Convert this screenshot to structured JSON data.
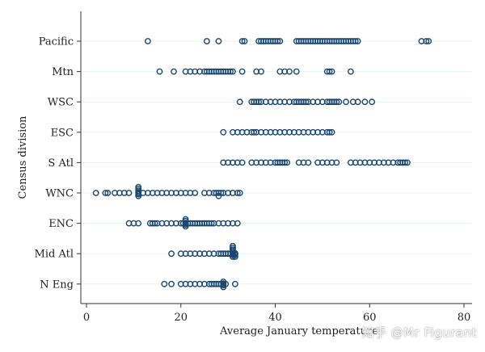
{
  "chart_data": {
    "type": "scatter",
    "xlabel": "Average January temperature",
    "ylabel": "Census division",
    "xlim": [
      0,
      80
    ],
    "x_ticks": [
      0,
      20,
      40,
      60,
      80
    ],
    "categories": [
      "Pacific",
      "Mtn",
      "WSC",
      "ESC",
      "S Atl",
      "WNC",
      "ENC",
      "Mid Atl",
      "N Eng"
    ],
    "grid": "horizontal",
    "legend": "none",
    "marker": "hollow circle",
    "marker_color": "#1a476f",
    "series": [
      {
        "values": [
          13,
          25.5,
          28,
          33,
          33.5,
          36.5,
          37,
          37.5,
          38,
          38.5,
          39,
          39.5,
          40,
          40.5,
          41,
          44.5,
          45,
          45.5,
          46,
          46.5,
          47,
          47.5,
          48,
          48.5,
          49,
          49.5,
          50,
          50.5,
          51,
          51.5,
          52,
          52.5,
          53,
          53.5,
          54,
          54.5,
          55,
          55.5,
          56,
          56.5,
          57,
          57.5,
          71,
          72,
          72.5
        ]
      },
      {
        "values": [
          15.5,
          18.5,
          21,
          22,
          23,
          24,
          25,
          25.5,
          26,
          26.5,
          27,
          27.5,
          28,
          28.5,
          29,
          29.5,
          30,
          30.5,
          31,
          33,
          36,
          37,
          41,
          42,
          43,
          44.5,
          51,
          51.5,
          52,
          56
        ]
      },
      {
        "values": [
          32.5,
          35,
          35.5,
          36,
          36.5,
          37,
          38,
          39,
          40,
          41,
          42,
          43,
          44,
          44.5,
          45,
          45.5,
          46,
          46.5,
          47,
          48,
          49,
          50,
          51,
          51.5,
          52,
          52.5,
          53,
          53.5,
          55,
          56.5,
          57.5,
          59,
          60.5
        ]
      },
      {
        "values": [
          29,
          31,
          32,
          33,
          34,
          35,
          35.5,
          36,
          37,
          38,
          39,
          40,
          41,
          42,
          43,
          44,
          45,
          46,
          47,
          48,
          49,
          50,
          51,
          51.5,
          52
        ]
      },
      {
        "values": [
          29,
          30,
          31,
          32,
          33,
          35,
          36,
          37,
          38,
          39,
          40,
          40.5,
          41,
          41.5,
          42,
          42.5,
          45,
          46,
          47,
          49,
          50,
          51,
          52,
          53,
          56,
          57,
          58,
          59,
          60,
          61,
          62,
          63,
          64,
          65,
          66,
          66.5,
          67,
          67.5,
          68
        ]
      },
      {
        "values": [
          2,
          4,
          4.5,
          6,
          7,
          8,
          9,
          11,
          11,
          11,
          11,
          11,
          11,
          11,
          12,
          13,
          14,
          15,
          16,
          17,
          18,
          19,
          20,
          21,
          22,
          23,
          25,
          26,
          27,
          27.5,
          28,
          28,
          28.5,
          29,
          30,
          31,
          32,
          32.5
        ]
      },
      {
        "values": [
          9,
          10,
          11,
          13.5,
          14,
          14.5,
          15,
          16,
          17,
          18,
          19,
          20,
          20.5,
          21,
          21,
          21,
          21,
          21,
          21,
          21.5,
          22,
          22.5,
          23,
          23.5,
          24,
          24.5,
          25,
          25.5,
          26,
          26.5,
          27,
          28,
          29,
          30,
          31,
          32
        ]
      },
      {
        "values": [
          18,
          20,
          21,
          22,
          23,
          24,
          25,
          26,
          27,
          28,
          28.5,
          29,
          29.5,
          30,
          30.5,
          31,
          31,
          31,
          31,
          31,
          31,
          31,
          31,
          31.5,
          31.5,
          31.5,
          31.5
        ]
      },
      {
        "values": [
          16.5,
          18,
          20,
          21,
          22,
          23,
          24,
          25,
          26,
          26.5,
          27,
          27.5,
          28,
          28.5,
          29,
          29,
          29,
          29,
          29,
          29.5,
          31.5
        ]
      }
    ]
  },
  "watermark": "知乎 @Mr Figurant"
}
